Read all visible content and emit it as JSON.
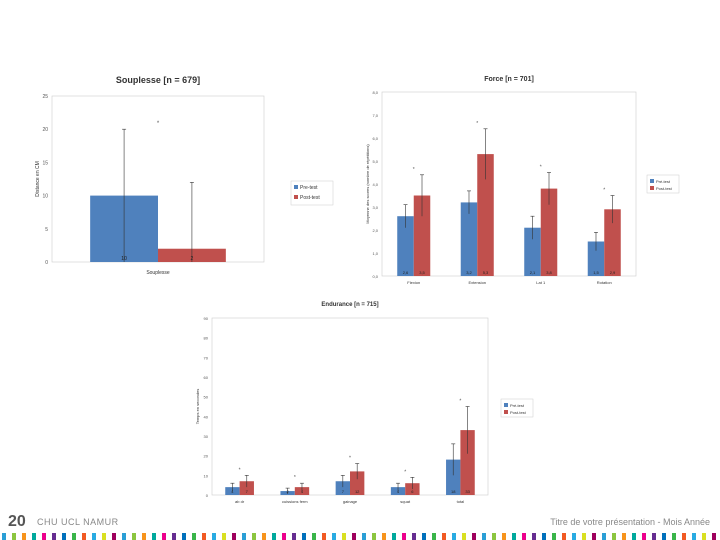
{
  "footer": {
    "slide_number": "20",
    "organization": "CHU UCL NAMUR",
    "presentation_title": "Titre de votre présentation - Mois Année"
  },
  "colors": {
    "pre": "#4f81bd",
    "post": "#c0504d",
    "axis": "#bbbbbb",
    "text": "#333333",
    "dashes": [
      "#2a9fd6",
      "#8cc63f",
      "#f7941d",
      "#00a99d",
      "#ec008c",
      "#662d91",
      "#0071bc",
      "#39b54a",
      "#f15a24",
      "#29abe2",
      "#d9e021",
      "#9e005d"
    ]
  },
  "chart_data": [
    {
      "type": "bar",
      "title": "Souplesse [n = 679]",
      "ylabel": "Distance en CM",
      "xlabel": "Souplesse",
      "ylim": [
        0,
        25
      ],
      "yticks": [
        0,
        5,
        10,
        15,
        20,
        25
      ],
      "series": [
        {
          "name": "Pre-test",
          "values": [
            10
          ],
          "errors": [
            10
          ],
          "labels": [
            "10"
          ]
        },
        {
          "name": "Post-test",
          "values": [
            2
          ],
          "errors": [
            10
          ],
          "labels": [
            "2"
          ]
        }
      ],
      "categories": [
        ""
      ],
      "annotations": [
        "*"
      ],
      "legend": "right"
    },
    {
      "type": "bar",
      "title": "Force [n = 701]",
      "ylabel": "Moyenne des scores (nombre de répétitions)",
      "xlabel": "",
      "ylim": [
        0,
        8
      ],
      "yticks": [
        0,
        1,
        2,
        3,
        4,
        5,
        6,
        7,
        8
      ],
      "ytick_labels": [
        "0,0",
        "1,0",
        "2,0",
        "3,0",
        "4,0",
        "5,0",
        "6,0",
        "7,0",
        "8,0"
      ],
      "categories": [
        "Flexion",
        "Extension",
        "Lat 1",
        "Rotation"
      ],
      "series": [
        {
          "name": "Pré-test",
          "values": [
            2.6,
            3.2,
            2.1,
            1.5
          ],
          "errors": [
            0.5,
            0.5,
            0.5,
            0.4
          ],
          "labels": [
            "2,6",
            "3,2",
            "2,1",
            "1,5"
          ]
        },
        {
          "name": "Post-test",
          "values": [
            3.5,
            5.3,
            3.8,
            2.9
          ],
          "errors": [
            0.9,
            1.1,
            0.7,
            0.6
          ],
          "labels": [
            "3,5",
            "5,3",
            "3,8",
            "2,9"
          ]
        }
      ],
      "annotations": [
        "*",
        "*",
        "*",
        "*"
      ],
      "legend": "right"
    },
    {
      "type": "bar",
      "title": "Endurance [n = 715]",
      "ylabel": "Temps en secondes",
      "xlabel": "",
      "ylim": [
        0,
        90
      ],
      "yticks": [
        0,
        10,
        20,
        30,
        40,
        50,
        60,
        70,
        80,
        90
      ],
      "categories": [
        "ab dr",
        "cuissions ferm",
        "gainage",
        "squat",
        "total"
      ],
      "series": [
        {
          "name": "Pré-test",
          "values": [
            4,
            2,
            7,
            4,
            18
          ],
          "errors": [
            2,
            1.5,
            3,
            2,
            8
          ],
          "labels": [
            "4",
            "2",
            "7",
            "4",
            "18"
          ]
        },
        {
          "name": "Post-test",
          "values": [
            7,
            4,
            12,
            6,
            33
          ],
          "errors": [
            3,
            2,
            4,
            3,
            12
          ],
          "labels": [
            "7",
            "4",
            "12",
            "6",
            "33"
          ]
        }
      ],
      "annotations": [
        "*",
        "*",
        "*",
        "*",
        "*"
      ],
      "legend": "right"
    }
  ]
}
